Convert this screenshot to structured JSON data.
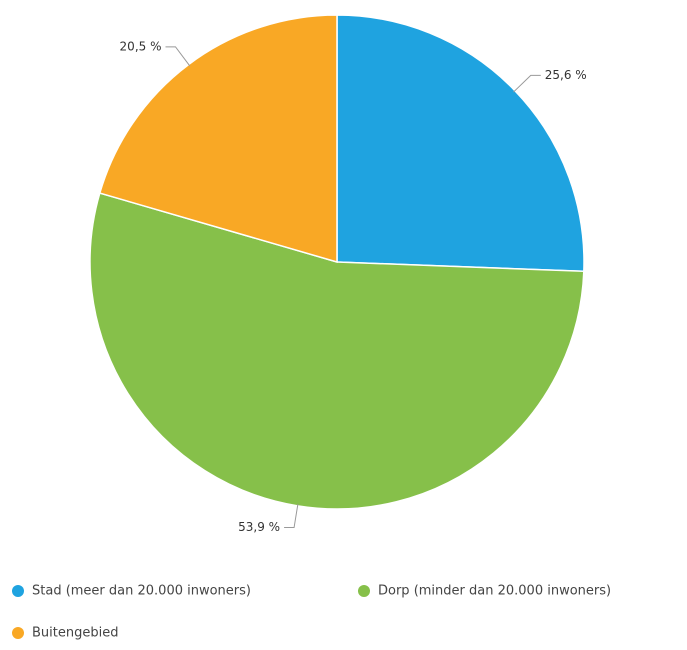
{
  "chart_data": {
    "type": "pie",
    "categories": [
      "Stad (meer dan 20.000 inwoners)",
      "Dorp (minder dan 20.000 inwoners)",
      "Buitengebied"
    ],
    "values": [
      25.6,
      53.9,
      20.5
    ],
    "value_labels": [
      "25,6 %",
      "53,9 %",
      "20,5 %"
    ],
    "colors": [
      "#1fa3e0",
      "#86c04a",
      "#f9a825"
    ]
  }
}
